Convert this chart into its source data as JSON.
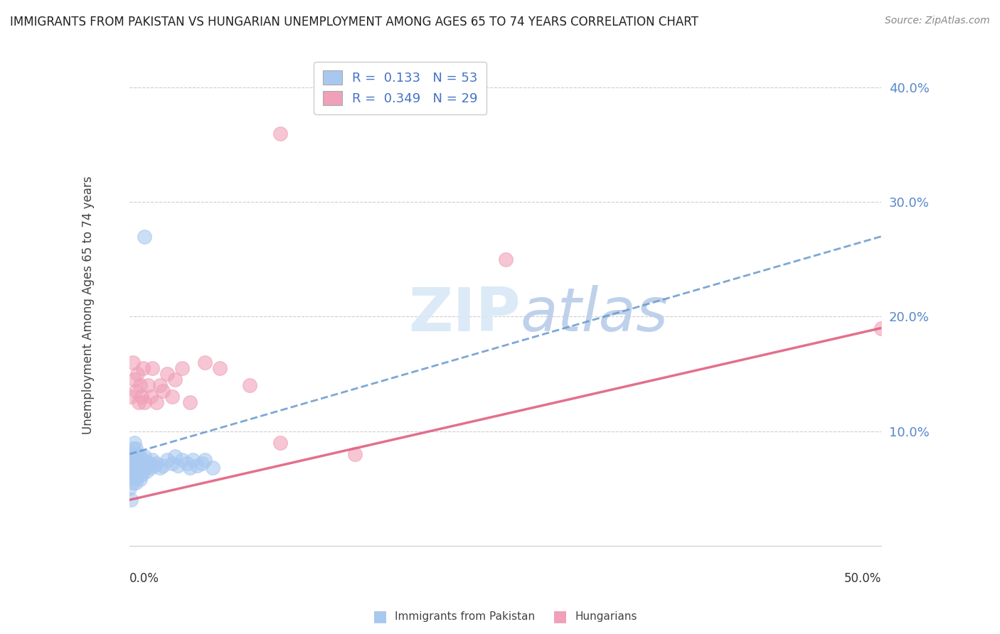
{
  "title": "IMMIGRANTS FROM PAKISTAN VS HUNGARIAN UNEMPLOYMENT AMONG AGES 65 TO 74 YEARS CORRELATION CHART",
  "source": "Source: ZipAtlas.com",
  "ylabel": "Unemployment Among Ages 65 to 74 years",
  "series1_label": "Immigrants from Pakistan",
  "series1_R": 0.133,
  "series1_N": 53,
  "series1_color": "#a8c8f0",
  "series1_line_color": "#6699cc",
  "series2_label": "Hungarians",
  "series2_R": 0.349,
  "series2_N": 29,
  "series2_color": "#f0a0b8",
  "series2_line_color": "#e06080",
  "xlim": [
    0.0,
    0.5
  ],
  "ylim": [
    0.0,
    0.42
  ],
  "background_color": "#ffffff",
  "title_fontsize": 12,
  "source_fontsize": 10,
  "legend_fontsize": 12,
  "legend_R_color": "#4472c4",
  "legend_N_color": "#e05070",
  "series1_x": [
    0.0,
    0.001,
    0.001,
    0.001,
    0.001,
    0.002,
    0.002,
    0.002,
    0.002,
    0.003,
    0.003,
    0.003,
    0.003,
    0.004,
    0.004,
    0.004,
    0.004,
    0.005,
    0.005,
    0.005,
    0.006,
    0.006,
    0.007,
    0.007,
    0.007,
    0.008,
    0.008,
    0.009,
    0.009,
    0.01,
    0.01,
    0.011,
    0.012,
    0.013,
    0.014,
    0.015,
    0.016,
    0.018,
    0.02,
    0.022,
    0.025,
    0.028,
    0.03,
    0.032,
    0.035,
    0.038,
    0.04,
    0.042,
    0.045,
    0.048,
    0.05,
    0.055,
    0.01
  ],
  "series1_y": [
    0.05,
    0.06,
    0.07,
    0.04,
    0.08,
    0.055,
    0.065,
    0.075,
    0.085,
    0.06,
    0.07,
    0.08,
    0.09,
    0.055,
    0.065,
    0.075,
    0.085,
    0.06,
    0.07,
    0.08,
    0.065,
    0.075,
    0.058,
    0.068,
    0.078,
    0.062,
    0.072,
    0.065,
    0.075,
    0.068,
    0.078,
    0.065,
    0.07,
    0.072,
    0.068,
    0.075,
    0.07,
    0.072,
    0.068,
    0.07,
    0.075,
    0.072,
    0.078,
    0.07,
    0.075,
    0.072,
    0.068,
    0.075,
    0.07,
    0.072,
    0.075,
    0.068,
    0.27
  ],
  "series2_x": [
    0.001,
    0.002,
    0.003,
    0.004,
    0.005,
    0.006,
    0.007,
    0.008,
    0.009,
    0.01,
    0.012,
    0.014,
    0.015,
    0.018,
    0.02,
    0.022,
    0.025,
    0.028,
    0.03,
    0.035,
    0.04,
    0.1,
    0.15,
    0.25,
    0.5,
    0.05,
    0.06,
    0.08,
    0.1
  ],
  "series2_y": [
    0.13,
    0.16,
    0.145,
    0.135,
    0.15,
    0.125,
    0.14,
    0.13,
    0.155,
    0.125,
    0.14,
    0.13,
    0.155,
    0.125,
    0.14,
    0.135,
    0.15,
    0.13,
    0.145,
    0.155,
    0.125,
    0.09,
    0.08,
    0.25,
    0.19,
    0.16,
    0.155,
    0.14,
    0.36
  ],
  "line1_x0": 0.0,
  "line1_y0": 0.08,
  "line1_x1": 0.5,
  "line1_y1": 0.27,
  "line2_x0": 0.0,
  "line2_y0": 0.04,
  "line2_x1": 0.5,
  "line2_y1": 0.19
}
